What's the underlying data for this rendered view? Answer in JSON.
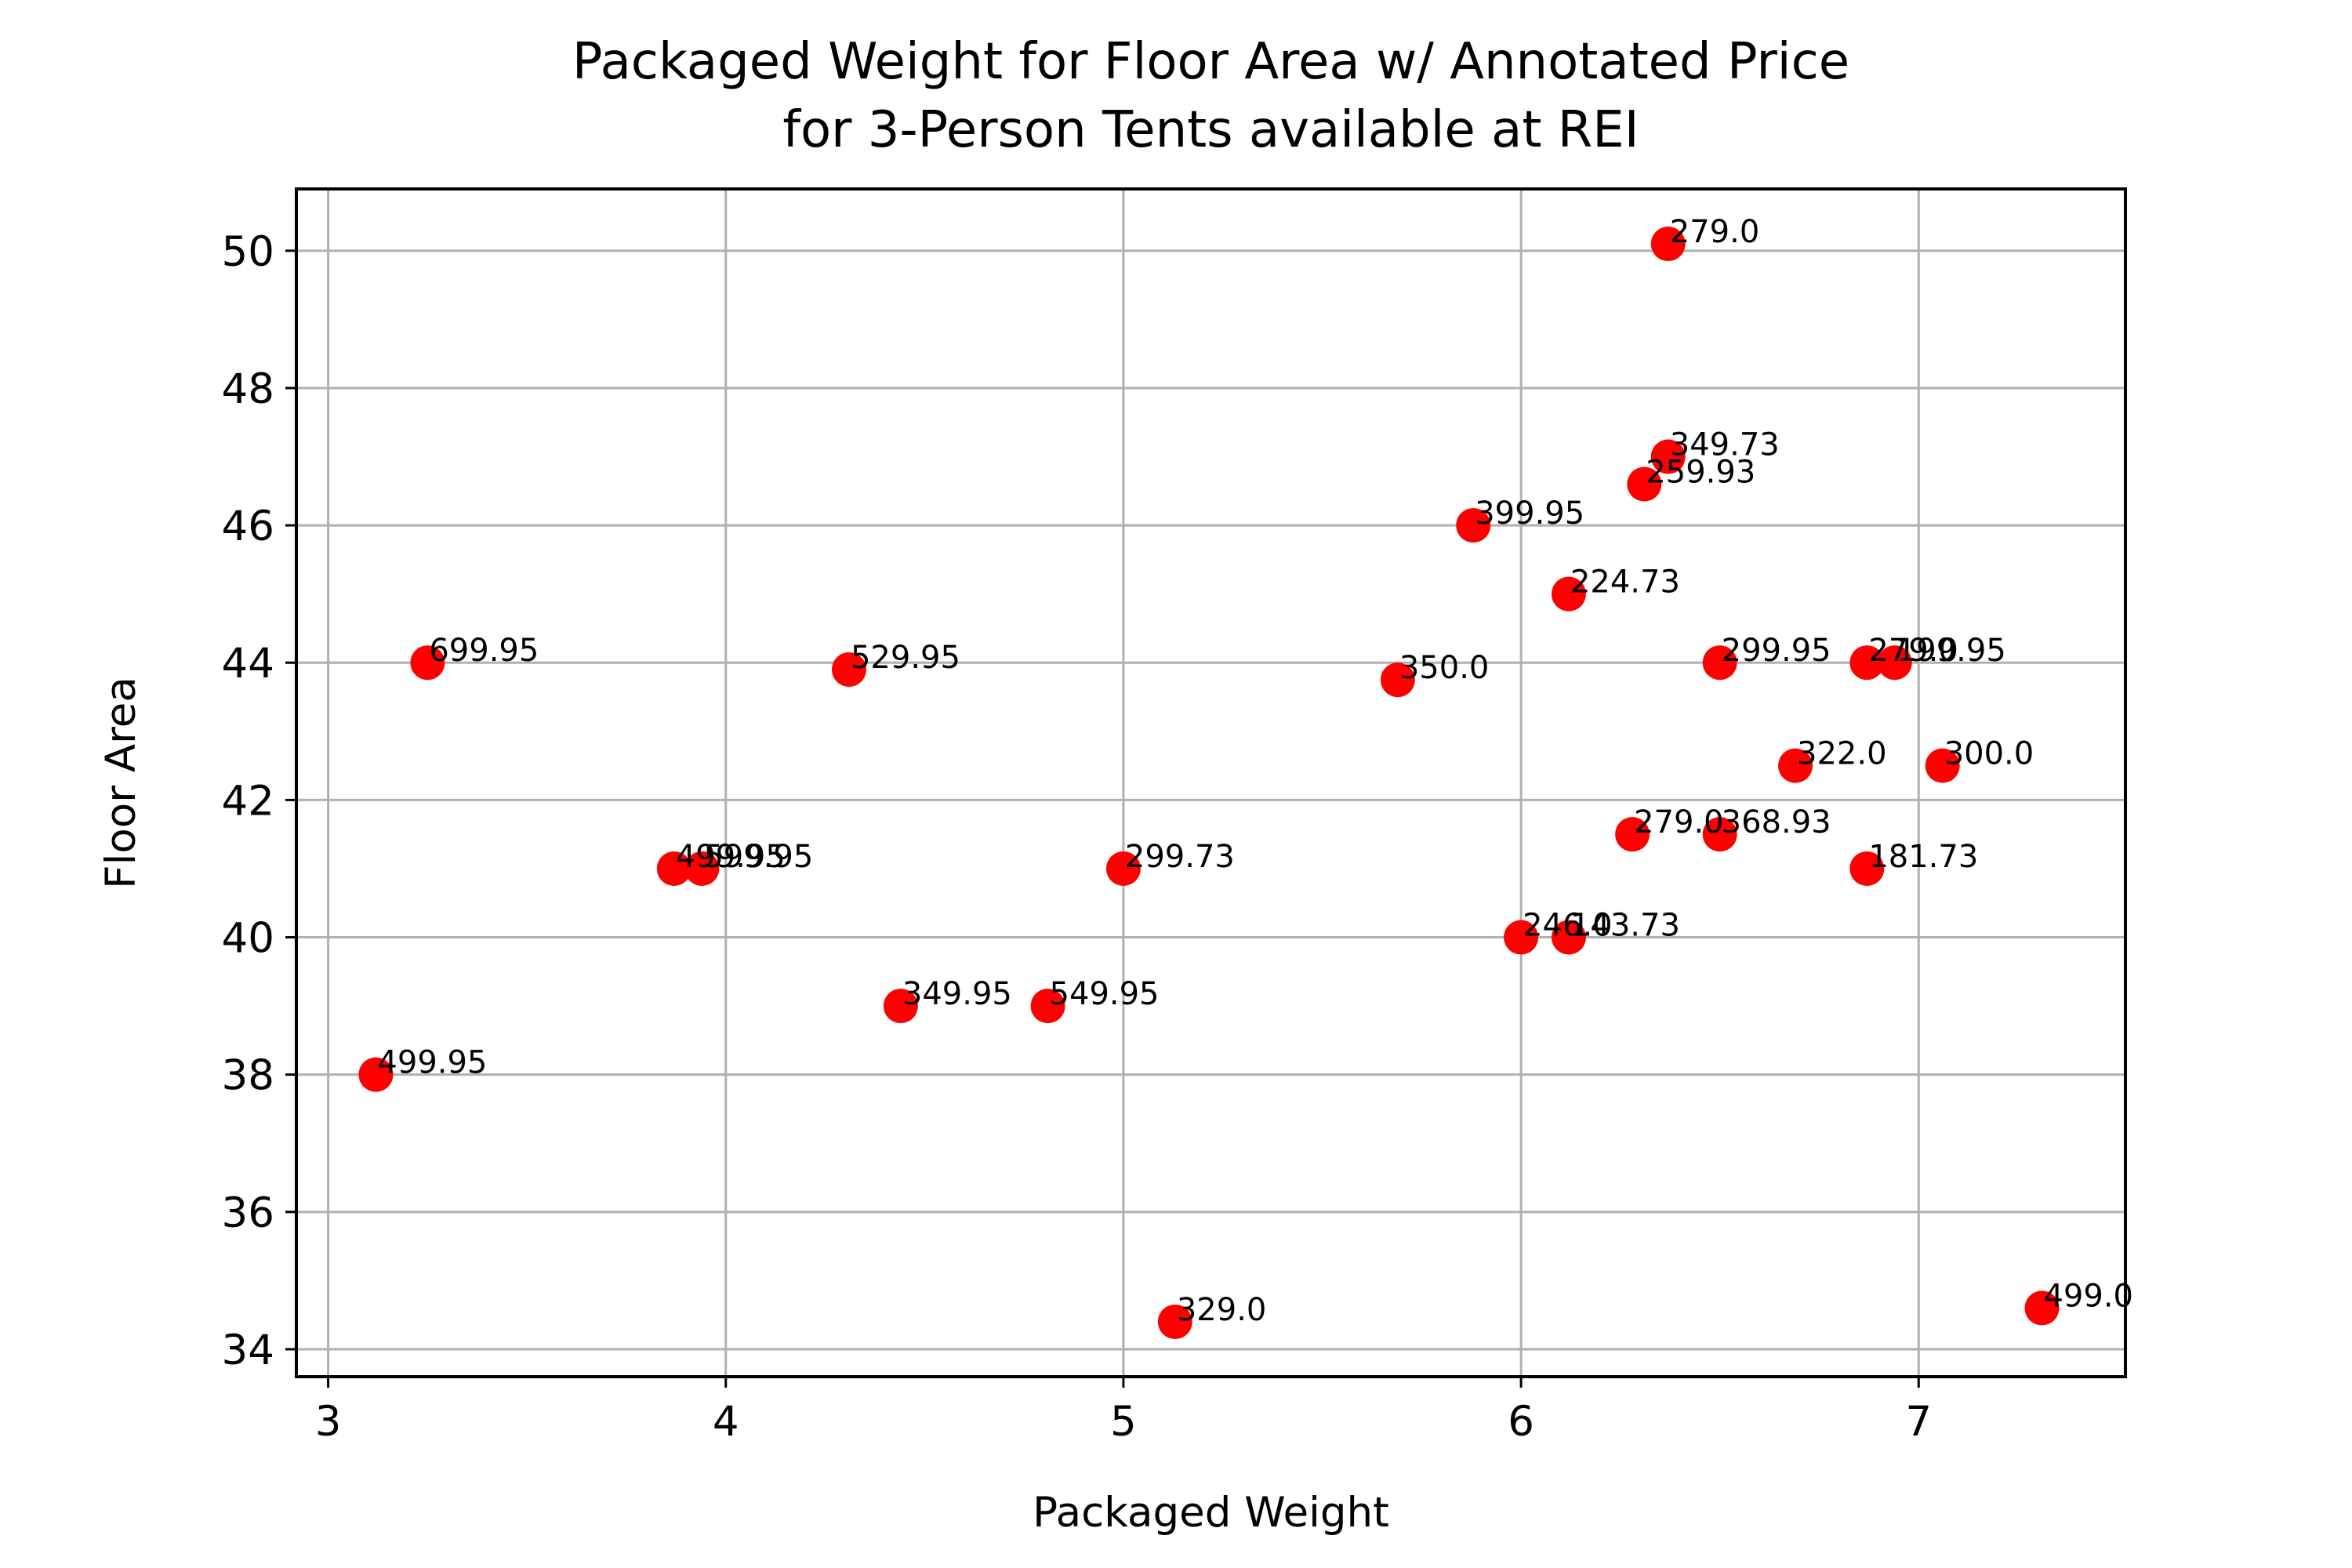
{
  "chart_data": {
    "type": "scatter",
    "title": "Packaged Weight for Floor Area w/ Annotated Price\nfor 3-Person Tents available at REI",
    "xlabel": "Packaged Weight",
    "ylabel": "Floor Area",
    "xlim": [
      2.92,
      7.52
    ],
    "ylim": [
      33.6,
      50.9
    ],
    "xticks": [
      3,
      4,
      5,
      6,
      7
    ],
    "yticks": [
      34,
      36,
      38,
      40,
      42,
      44,
      46,
      48,
      50
    ],
    "grid": true,
    "marker_color": "#ff0000",
    "points": [
      {
        "x": 3.12,
        "y": 38.0,
        "label": "499.95"
      },
      {
        "x": 3.25,
        "y": 44.0,
        "label": "699.95"
      },
      {
        "x": 3.87,
        "y": 41.0,
        "label": "499.95"
      },
      {
        "x": 3.94,
        "y": 41.0,
        "label": "599.95"
      },
      {
        "x": 4.31,
        "y": 43.9,
        "label": "529.95"
      },
      {
        "x": 4.44,
        "y": 39.0,
        "label": "349.95"
      },
      {
        "x": 4.81,
        "y": 39.0,
        "label": "549.95"
      },
      {
        "x": 5.0,
        "y": 41.0,
        "label": "299.73"
      },
      {
        "x": 5.13,
        "y": 34.4,
        "label": "329.0"
      },
      {
        "x": 5.69,
        "y": 43.75,
        "label": "350.0"
      },
      {
        "x": 5.88,
        "y": 46.0,
        "label": "399.95"
      },
      {
        "x": 6.0,
        "y": 40.0,
        "label": "246.0"
      },
      {
        "x": 6.12,
        "y": 40.0,
        "label": "143.73"
      },
      {
        "x": 6.12,
        "y": 45.0,
        "label": "224.73"
      },
      {
        "x": 6.28,
        "y": 41.5,
        "label": "279.0"
      },
      {
        "x": 6.31,
        "y": 46.6,
        "label": "259.93"
      },
      {
        "x": 6.37,
        "y": 47.0,
        "label": "349.73"
      },
      {
        "x": 6.37,
        "y": 50.1,
        "label": "279.0"
      },
      {
        "x": 6.5,
        "y": 44.0,
        "label": "299.95"
      },
      {
        "x": 6.5,
        "y": 41.5,
        "label": "368.93"
      },
      {
        "x": 6.69,
        "y": 42.5,
        "label": "322.0"
      },
      {
        "x": 6.87,
        "y": 44.0,
        "label": "279.0"
      },
      {
        "x": 6.94,
        "y": 44.0,
        "label": "199.95"
      },
      {
        "x": 6.87,
        "y": 41.0,
        "label": "181.73"
      },
      {
        "x": 7.06,
        "y": 42.5,
        "label": "300.0"
      },
      {
        "x": 7.31,
        "y": 34.6,
        "label": "499.0"
      }
    ]
  }
}
